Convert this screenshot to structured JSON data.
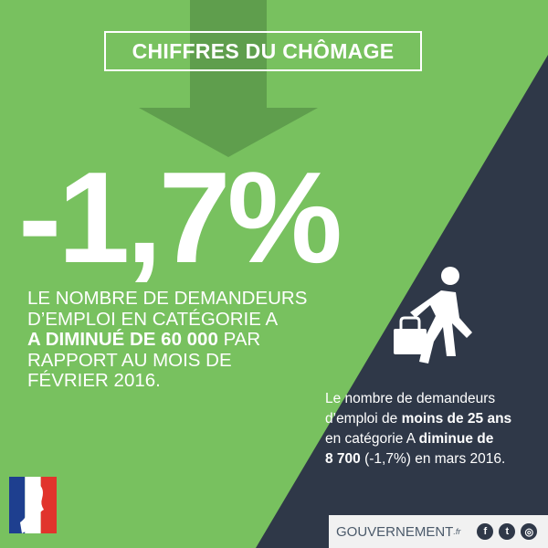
{
  "colors": {
    "green": "#78c15f",
    "arrow_green": "#5f9e4d",
    "navy": "#2f3848",
    "white": "#ffffff",
    "flag_blue": "#1e3f8f",
    "flag_red": "#e1342c"
  },
  "title": "CHIFFRES DU CHÔMAGE",
  "headline_value": "-1,7%",
  "main_text": {
    "line1": "LE NOMBRE DE DEMANDEURS",
    "line2": "D’EMPLOI EN CATÉGORIE A",
    "line3_bold": "A DIMINUÉ DE 60 000",
    "line3_rest": " PAR",
    "line4": "RAPPORT AU MOIS DE",
    "line5": "FÉVRIER 2016."
  },
  "side_text": {
    "l1": "Le nombre de demandeurs",
    "l2_a": "d’emploi de ",
    "l2_bold": "moins de 25 ans",
    "l3_a": "en catégorie A ",
    "l3_bold": "diminue de",
    "l4_bold": "8 700",
    "l4_rest": " (-1,7%) en mars 2016."
  },
  "icons": {
    "arrow": "down-arrow-icon",
    "walker": "person-walking-with-briefcase-icon",
    "flag": "marianne-flag-logo",
    "facebook": "facebook-icon",
    "twitter": "twitter-icon",
    "instagram": "instagram-icon"
  },
  "footer": {
    "brand": "GOUVERNEMENT",
    "brand_suffix": ".fr",
    "facebook": "f",
    "twitter": "t",
    "instagram": "◎"
  }
}
